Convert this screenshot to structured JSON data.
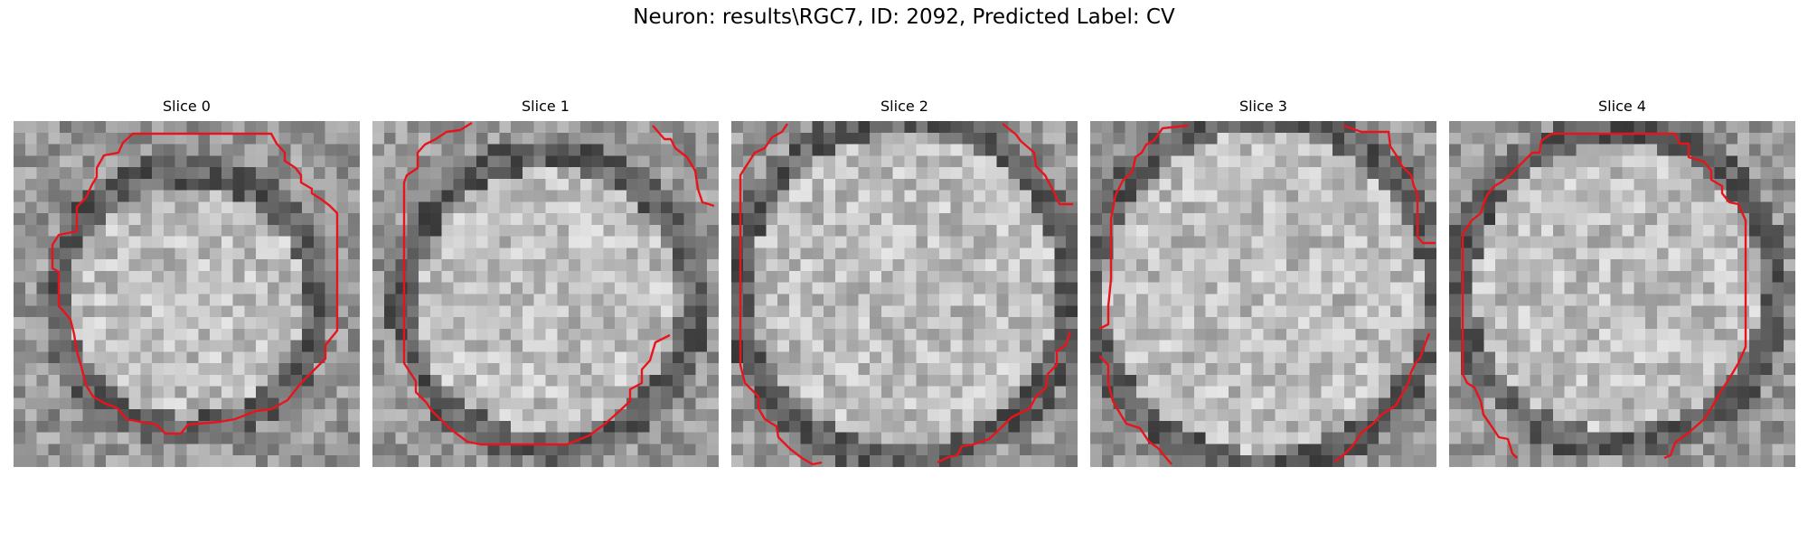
{
  "figure": {
    "title": "Neuron: results\\RGC7, ID: 2092, Predicted Label: CV"
  },
  "panels": [
    {
      "title": "Slice 0"
    },
    {
      "title": "Slice 1"
    },
    {
      "title": "Slice 2"
    },
    {
      "title": "Slice 3"
    },
    {
      "title": "Slice 4"
    }
  ],
  "contour_color": "#e8141c",
  "colormap": "grayscale"
}
